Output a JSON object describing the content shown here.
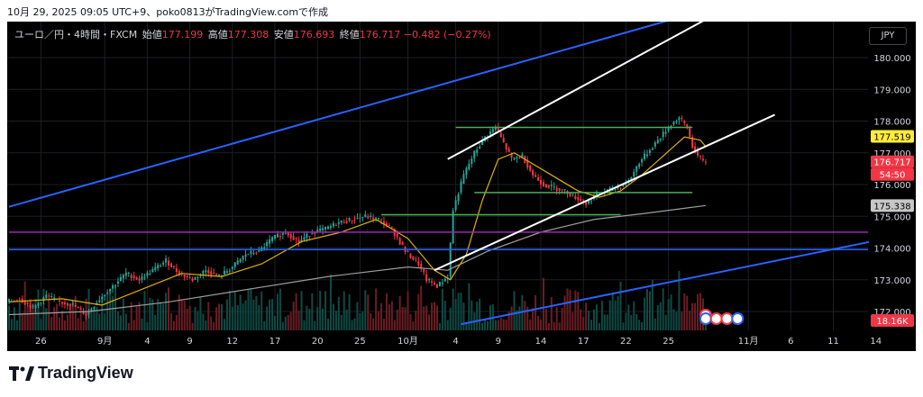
{
  "header": {
    "caption": "10月 29, 2025 09:05 UTC+9、poko0813がTradingView.comで作成"
  },
  "legend": {
    "symbol": "ユーロ／円・4時間・FXCM",
    "open_label": "始値",
    "open": "177.199",
    "high_label": "高値",
    "high": "177.308",
    "low_label": "安値",
    "low": "176.693",
    "close_label": "終値",
    "close": "176.717",
    "change": "−0.482 (−0.27%)"
  },
  "currency_button": "JPY",
  "price_labels": [
    {
      "text": "177.519",
      "value": 177.519,
      "bg": "#ffeb3b",
      "fg": "#000000"
    },
    {
      "text": "176.717",
      "value": 176.717,
      "bg": "#f23645",
      "fg": "#ffffff"
    },
    {
      "text": "54:50",
      "value": 176.42,
      "bg": "#f23645",
      "fg": "#ffffff"
    },
    {
      "text": "175.338",
      "value": 175.338,
      "bg": "#c7c7c7",
      "fg": "#000000"
    }
  ],
  "volume_label": {
    "text": "18.16K",
    "bg": "#f23645",
    "fg": "#ffffff"
  },
  "footer": {
    "brand": "TradingView"
  },
  "colors": {
    "up": "#26a69a",
    "down": "#f23645",
    "ma_short": "#e0b000",
    "ma_long": "#9e9e9e",
    "channel_blue": "#2962ff",
    "channel_white": "#ffffff",
    "support": "#4caf50",
    "horizontal_purple": "#9c27b0",
    "horizontal_blue": "#2962ff"
  },
  "chart_data": {
    "type": "candlestick",
    "y_axis": {
      "ticks": [
        180.0,
        179.0,
        178.0,
        177.0,
        176.0,
        175.0,
        174.0,
        173.0,
        172.0
      ],
      "tick_labels": [
        "180.000",
        "179.000",
        "178.000",
        "177.000",
        "176.000",
        "175.000",
        "174.000",
        "173.000",
        "172.000"
      ]
    },
    "x_axis": {
      "ticks": [
        {
          "label": "26",
          "bar": 12
        },
        {
          "label": "9月",
          "bar": 36
        },
        {
          "label": "4",
          "bar": 52
        },
        {
          "label": "9",
          "bar": 68
        },
        {
          "label": "12",
          "bar": 84
        },
        {
          "label": "17",
          "bar": 100
        },
        {
          "label": "20",
          "bar": 116
        },
        {
          "label": "25",
          "bar": 132
        },
        {
          "label": "10月",
          "bar": 150
        },
        {
          "label": "4",
          "bar": 168
        },
        {
          "label": "9",
          "bar": 184
        },
        {
          "label": "14",
          "bar": 200
        },
        {
          "label": "17",
          "bar": 216
        },
        {
          "label": "22",
          "bar": 232
        },
        {
          "label": "25",
          "bar": 248
        },
        {
          "label": "11月",
          "bar": 278
        },
        {
          "label": "6",
          "bar": 294
        },
        {
          "label": "11",
          "bar": 310
        },
        {
          "label": "14",
          "bar": 326
        }
      ]
    },
    "price_path": [
      [
        0,
        172.3
      ],
      [
        5,
        172.4
      ],
      [
        10,
        172.1
      ],
      [
        15,
        172.5
      ],
      [
        20,
        172.3
      ],
      [
        25,
        172.2
      ],
      [
        30,
        171.9
      ],
      [
        35,
        172.4
      ],
      [
        40,
        172.8
      ],
      [
        45,
        173.2
      ],
      [
        50,
        173.0
      ],
      [
        55,
        173.3
      ],
      [
        60,
        173.6
      ],
      [
        65,
        173.2
      ],
      [
        70,
        173.0
      ],
      [
        75,
        173.3
      ],
      [
        80,
        173.1
      ],
      [
        85,
        173.4
      ],
      [
        90,
        173.8
      ],
      [
        95,
        173.9
      ],
      [
        100,
        174.3
      ],
      [
        105,
        174.5
      ],
      [
        110,
        174.2
      ],
      [
        115,
        174.5
      ],
      [
        120,
        174.6
      ],
      [
        125,
        174.8
      ],
      [
        130,
        174.9
      ],
      [
        135,
        175.0
      ],
      [
        140,
        174.9
      ],
      [
        145,
        174.6
      ],
      [
        150,
        173.9
      ],
      [
        155,
        173.5
      ],
      [
        158,
        173.0
      ],
      [
        162,
        172.8
      ],
      [
        166,
        173.1
      ],
      [
        168,
        175.2
      ],
      [
        172,
        176.3
      ],
      [
        176,
        177.0
      ],
      [
        180,
        177.5
      ],
      [
        184,
        177.8
      ],
      [
        187,
        177.3
      ],
      [
        190,
        176.8
      ],
      [
        194,
        176.9
      ],
      [
        198,
        176.3
      ],
      [
        202,
        176.0
      ],
      [
        206,
        175.9
      ],
      [
        210,
        175.8
      ],
      [
        214,
        175.6
      ],
      [
        218,
        175.4
      ],
      [
        222,
        175.7
      ],
      [
        226,
        175.8
      ],
      [
        230,
        175.9
      ],
      [
        234,
        176.1
      ],
      [
        238,
        176.7
      ],
      [
        242,
        177.1
      ],
      [
        246,
        177.5
      ],
      [
        250,
        177.9
      ],
      [
        253,
        178.1
      ],
      [
        256,
        177.8
      ],
      [
        258,
        177.2
      ],
      [
        260,
        176.9
      ],
      [
        262,
        176.72
      ]
    ],
    "ma_short": [
      [
        0,
        172.3
      ],
      [
        20,
        172.4
      ],
      [
        35,
        172.2
      ],
      [
        50,
        172.7
      ],
      [
        65,
        173.2
      ],
      [
        80,
        173.1
      ],
      [
        95,
        173.5
      ],
      [
        110,
        174.2
      ],
      [
        125,
        174.5
      ],
      [
        138,
        174.9
      ],
      [
        150,
        174.3
      ],
      [
        160,
        173.3
      ],
      [
        166,
        173.0
      ],
      [
        172,
        173.8
      ],
      [
        178,
        175.5
      ],
      [
        184,
        176.8
      ],
      [
        190,
        177.0
      ],
      [
        198,
        176.6
      ],
      [
        206,
        176.2
      ],
      [
        214,
        175.8
      ],
      [
        222,
        175.6
      ],
      [
        230,
        175.8
      ],
      [
        238,
        176.3
      ],
      [
        246,
        176.9
      ],
      [
        254,
        177.5
      ],
      [
        260,
        177.4
      ],
      [
        262,
        177.2
      ]
    ],
    "ma_long": [
      [
        0,
        171.9
      ],
      [
        30,
        172.0
      ],
      [
        60,
        172.3
      ],
      [
        90,
        172.7
      ],
      [
        120,
        173.1
      ],
      [
        150,
        173.4
      ],
      [
        165,
        173.3
      ],
      [
        180,
        173.9
      ],
      [
        200,
        174.5
      ],
      [
        220,
        174.9
      ],
      [
        240,
        175.1
      ],
      [
        262,
        175.338
      ]
    ],
    "lines": [
      {
        "name": "",
        "color": "#2962ff",
        "p1": [
          0,
          175.3
        ],
        "p2": [
          300,
          182.4
        ]
      },
      {
        "name": "",
        "color": "#2962ff",
        "p1": [
          170,
          171.6
        ],
        "p2": [
          330,
          174.3
        ]
      },
      {
        "name": "",
        "color": "#ffffff",
        "p1": [
          160,
          173.3
        ],
        "p2": [
          288,
          178.2
        ]
      },
      {
        "name": "",
        "color": "#ffffff",
        "p1": [
          165,
          176.8
        ],
        "p2": [
          262,
          181.2
        ]
      }
    ],
    "hlines": [
      {
        "value": 177.8,
        "from": 168,
        "to": 257,
        "color": "#4caf50"
      },
      {
        "value": 175.75,
        "from": 175,
        "to": 257,
        "color": "#4caf50"
      },
      {
        "value": 175.05,
        "from": 140,
        "to": 230,
        "color": "#4caf50"
      },
      {
        "value": 174.5,
        "from": 0,
        "to": 336,
        "color": "#9c27b0"
      },
      {
        "value": 173.95,
        "from": 0,
        "to": 336,
        "color": "#2962ff"
      }
    ],
    "volume_last": "18.16K"
  }
}
